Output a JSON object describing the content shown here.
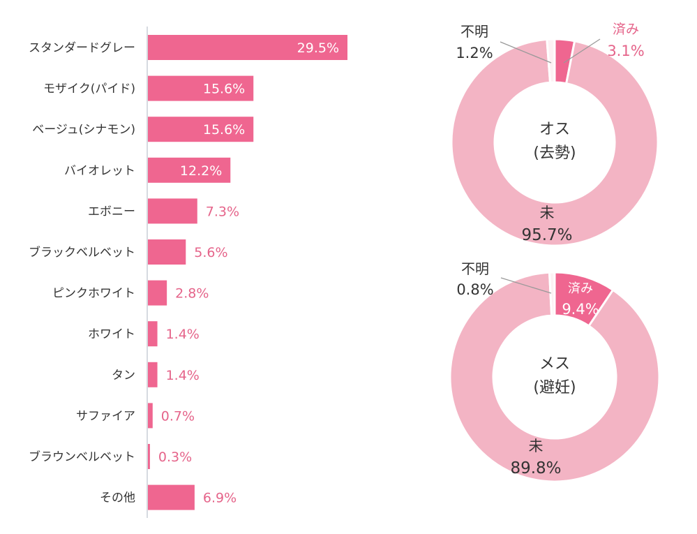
{
  "colors": {
    "bar": "#ef6690",
    "value_label_pink": "#e5648a",
    "value_label_white": "#ffffff",
    "axis": "#c9cdd6",
    "category_text": "#333333",
    "donut_light": "#f3b4c4",
    "donut_dark": "#ef6690",
    "donut_white": "#fdf1f4",
    "center_text": "#333333",
    "label_dark": "#333333"
  },
  "chart_data": [
    {
      "type": "bar",
      "orientation": "horizontal",
      "categories": [
        "スタンダードグレー",
        "モザイク(パイド)",
        "ベージュ(シナモン)",
        "バイオレット",
        "エボニー",
        "ブラックベルベット",
        "ピンクホワイト",
        "ホワイト",
        "タン",
        "サファイア",
        "ブラウンベルベット",
        "その他"
      ],
      "values": [
        29.5,
        15.6,
        15.6,
        12.2,
        7.3,
        5.6,
        2.8,
        1.4,
        1.4,
        0.7,
        0.3,
        6.9
      ],
      "value_labels": [
        "29.5%",
        "15.6%",
        "15.6%",
        "12.2%",
        "7.3%",
        "5.6%",
        "2.8%",
        "1.4%",
        "1.4%",
        "0.7%",
        "0.3%",
        "6.9%"
      ],
      "xlim": [
        0,
        31
      ]
    },
    {
      "type": "pie",
      "donut": true,
      "center_label": [
        "オス",
        "(去勢)"
      ],
      "slices": [
        {
          "name": "済み",
          "value": 3.1,
          "label": "3.1%"
        },
        {
          "name": "未",
          "value": 95.7,
          "label": "95.7%"
        },
        {
          "name": "不明",
          "value": 1.2,
          "label": "1.2%"
        }
      ]
    },
    {
      "type": "pie",
      "donut": true,
      "center_label": [
        "メス",
        "(避妊)"
      ],
      "slices": [
        {
          "name": "済み",
          "value": 9.4,
          "label": "9.4%"
        },
        {
          "name": "未",
          "value": 89.8,
          "label": "89.8%"
        },
        {
          "name": "不明",
          "value": 0.8,
          "label": "0.8%"
        }
      ]
    }
  ]
}
